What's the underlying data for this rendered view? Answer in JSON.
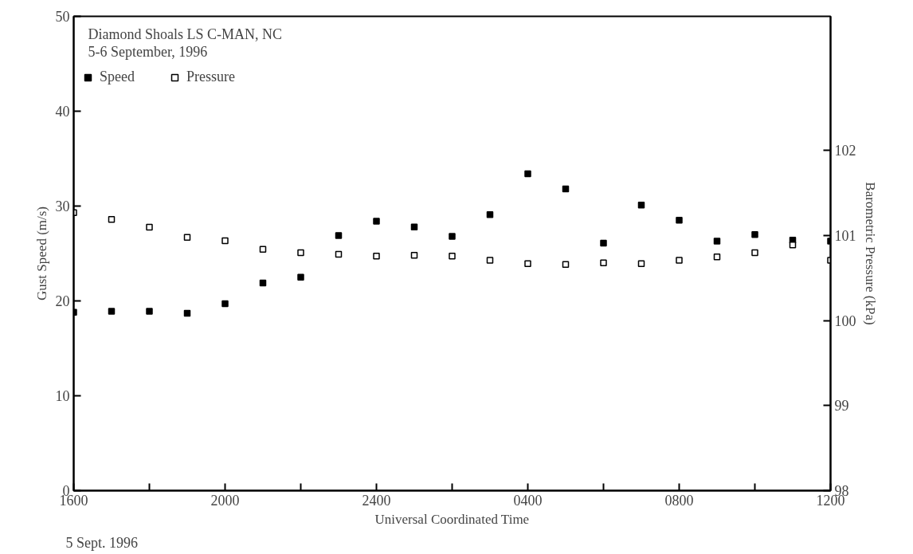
{
  "chart_data": {
    "type": "scatter",
    "title": "Diamond Shoals LS C-MAN, NC",
    "subtitle": "5-6 September, 1996",
    "xlabel": "Universal Coordinated Time",
    "ylabel": "Gust Speed (m/s)",
    "y2label": "Barometric Pressure (kPa)",
    "annotations": [
      "5 Sept. 1996"
    ],
    "categories": [
      "1600",
      null,
      null,
      null,
      "2000",
      null,
      null,
      null,
      "2400",
      null,
      null,
      null,
      "0400",
      null,
      null,
      null,
      "0800",
      null,
      null,
      null,
      "1200"
    ],
    "series": [
      {
        "name": "Speed",
        "color": "#000000",
        "values": [
          18.8,
          18.9,
          18.9,
          18.7,
          19.7,
          21.9,
          22.5,
          26.9,
          28.4,
          27.8,
          26.8,
          29.1,
          33.4,
          31.8,
          26.1,
          30.1,
          28.5,
          26.3,
          27.0,
          26.4,
          26.3
        ]
      },
      {
        "name": "Pressure",
        "color": "#000000",
        "axis": "y2",
        "values": [
          101.27,
          101.19,
          101.1,
          100.98,
          100.94,
          100.84,
          100.8,
          100.78,
          100.76,
          100.77,
          100.76,
          100.71,
          100.67,
          100.66,
          100.68,
          100.67,
          100.71,
          100.75,
          100.8,
          100.89,
          100.71
        ]
      }
    ],
    "ylim": [
      0,
      50
    ],
    "yticks": [
      0,
      10,
      20,
      30,
      40,
      50
    ],
    "y2lim": [
      98,
      103.58
    ],
    "y2ticks": [
      98,
      99,
      100,
      101,
      102
    ],
    "marker": "square",
    "legend": "top left",
    "grid": false
  }
}
